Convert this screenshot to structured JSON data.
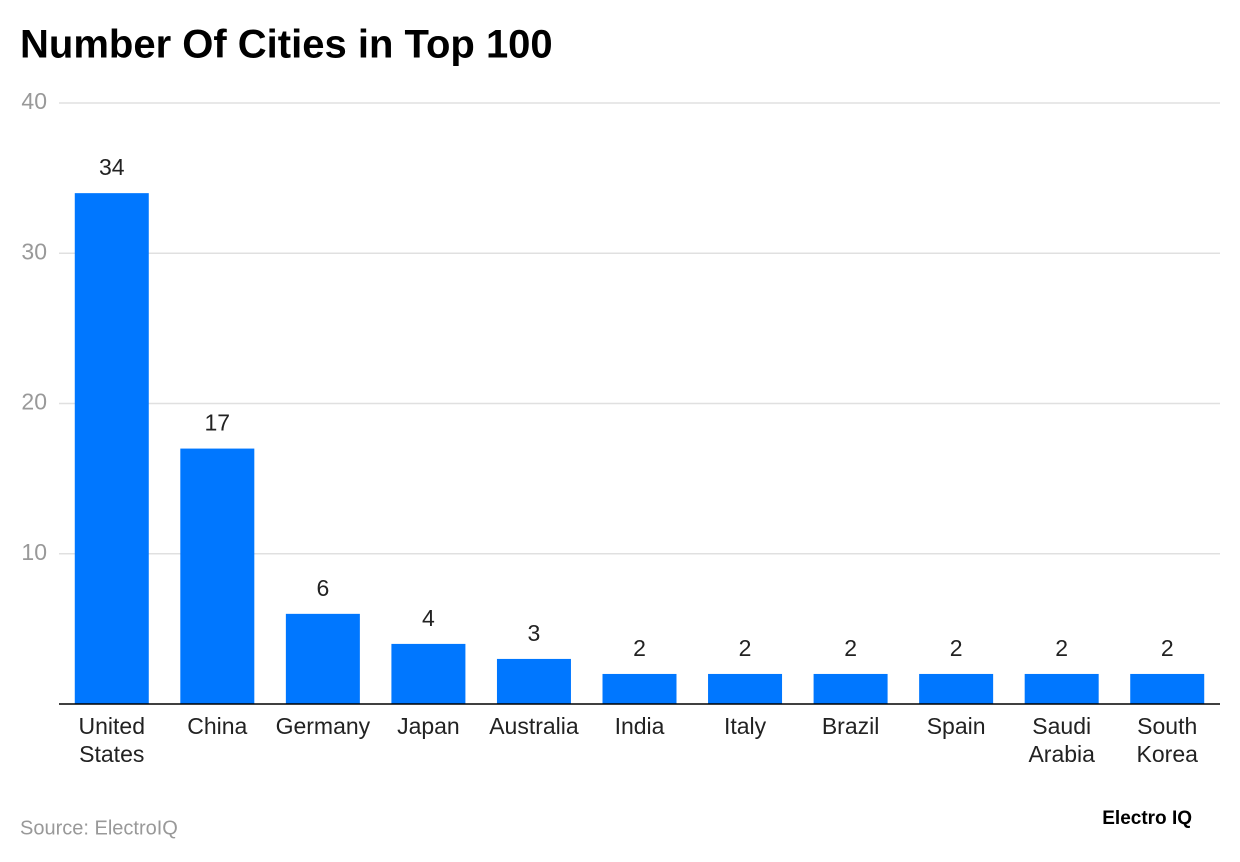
{
  "chart_data": {
    "type": "bar",
    "title": "Number Of Cities in Top 100",
    "categories": [
      "United States",
      "China",
      "Germany",
      "Japan",
      "Australia",
      "India",
      "Italy",
      "Brazil",
      "Spain",
      "Saudi Arabia",
      "South Korea"
    ],
    "values": [
      34,
      17,
      6,
      4,
      3,
      2,
      2,
      2,
      2,
      2,
      2
    ],
    "color": "#0077ff",
    "ylim": [
      0,
      40
    ],
    "yticks": [
      10,
      20,
      30,
      40
    ],
    "grid": true,
    "source": "Source: ElectroIQ",
    "brand": "Electro IQ"
  }
}
